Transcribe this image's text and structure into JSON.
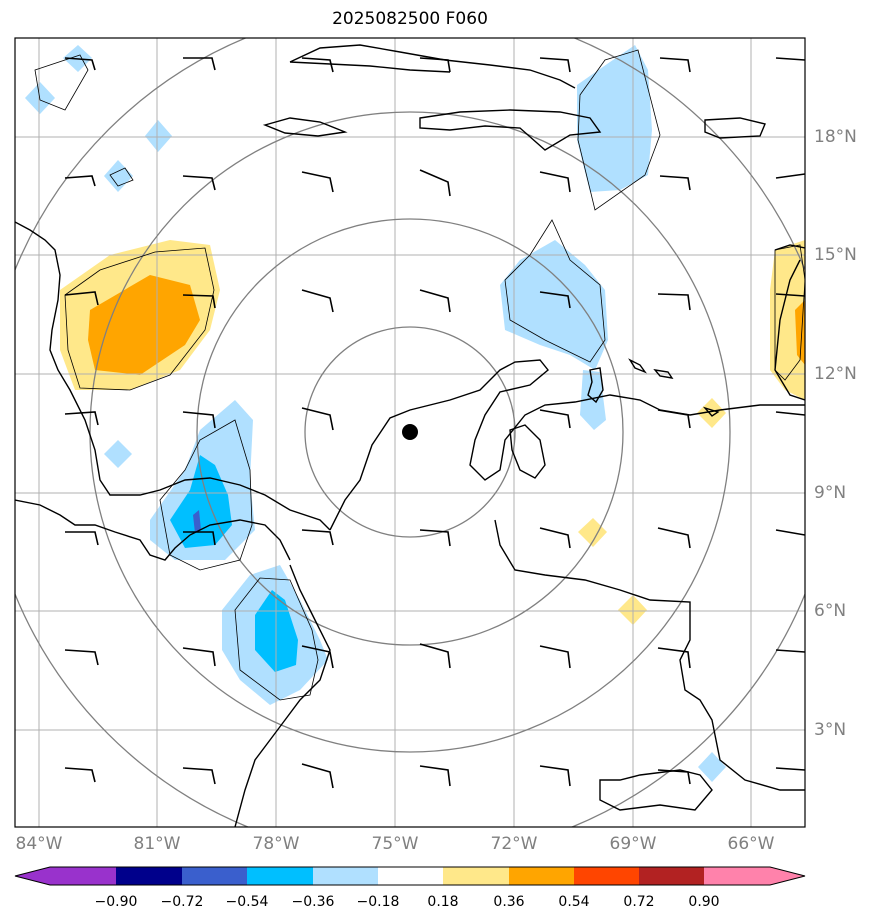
{
  "title": "2025082500 F060",
  "lon_labels": [
    "84°W",
    "81°W",
    "78°W",
    "75°W",
    "72°W",
    "69°W",
    "66°W"
  ],
  "lat_labels": [
    "18°N",
    "15°N",
    "12°N",
    "9°N",
    "6°N",
    "3°N"
  ],
  "colorbar": {
    "ticks": [
      "−0.90",
      "−0.72",
      "−0.54",
      "−0.36",
      "−0.18",
      "0.18",
      "0.36",
      "0.54",
      "0.72",
      "0.90"
    ],
    "colors": [
      "#9932cc",
      "#00008b",
      "#3a5fcd",
      "#00bfff",
      "#b0e0ff",
      "#ffffff",
      "#ffe88a",
      "#ffa500",
      "#ff4500",
      "#b22222",
      "#ff82ab"
    ]
  },
  "colors": {
    "light_blue": "#b0e0ff",
    "blue": "#00bfff",
    "yellow": "#ffe88a",
    "orange": "#ffa500",
    "range_rings": "#808080",
    "gridlines": "#b0b0b0"
  }
}
